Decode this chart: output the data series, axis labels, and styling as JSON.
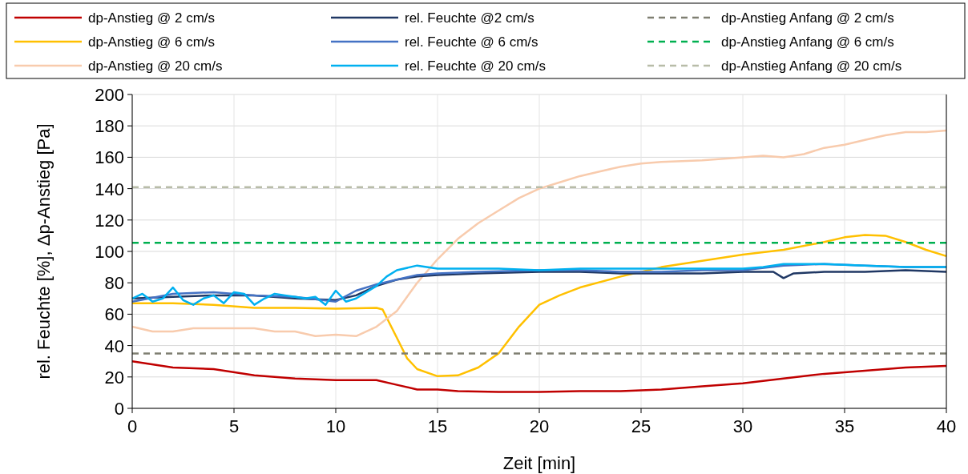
{
  "chart_data": {
    "type": "line",
    "xlabel": "Zeit [min]",
    "ylabel": "rel. Feuchte [%], Δp-Anstieg [Pa]",
    "xlim": [
      0,
      40
    ],
    "ylim": [
      0,
      200
    ],
    "xticks": [
      0,
      5,
      10,
      15,
      20,
      25,
      30,
      35,
      40
    ],
    "yticks": [
      0,
      20,
      40,
      60,
      80,
      100,
      120,
      140,
      160,
      180,
      200
    ],
    "grid": true,
    "legend": "top",
    "series": [
      {
        "name": "dp-Anstieg @ 2 cm/s",
        "color": "#c00000",
        "x": [
          0,
          2,
          4,
          6,
          8,
          10,
          12,
          13,
          14,
          15,
          16,
          18,
          20,
          22,
          24,
          26,
          28,
          30,
          32,
          34,
          36,
          38,
          40
        ],
        "values": [
          30,
          26,
          25,
          21,
          19,
          18,
          18,
          15,
          12,
          12,
          11,
          10.5,
          10.5,
          11,
          11,
          12,
          14,
          16,
          19,
          22,
          24,
          26,
          27
        ]
      },
      {
        "name": "dp-Anstieg @ 6 cm/s",
        "color": "#ffc000",
        "x": [
          0,
          2,
          4,
          6,
          8,
          10,
          12,
          12.3,
          13,
          13.5,
          14,
          15,
          16,
          17,
          18,
          19,
          20,
          21,
          22,
          24,
          26,
          28,
          30,
          32,
          34,
          35,
          36,
          37,
          38,
          39,
          40
        ],
        "values": [
          67,
          67,
          66,
          64,
          64,
          63.5,
          64,
          63,
          45,
          32,
          25,
          20.5,
          21,
          26,
          35,
          52,
          66,
          72,
          77,
          84,
          90,
          94,
          98,
          101,
          106,
          109,
          110.5,
          110,
          106,
          101,
          97
        ]
      },
      {
        "name": "dp-Anstieg @ 20 cm/s",
        "color": "#f8cbad",
        "x": [
          0,
          1,
          2,
          3,
          4,
          5,
          6,
          7,
          8,
          9,
          10,
          11,
          12,
          13,
          14,
          15,
          16,
          17,
          18,
          19,
          20,
          21,
          22,
          23,
          24,
          25,
          26,
          28,
          30,
          31,
          32,
          33,
          34,
          35,
          36,
          37,
          38,
          39,
          40
        ],
        "values": [
          52,
          49,
          49,
          51,
          51,
          51,
          51,
          49,
          49,
          46,
          47,
          46,
          52,
          62,
          80,
          95,
          108,
          118,
          126,
          134,
          140,
          144,
          148,
          151,
          154,
          156,
          157,
          158,
          160,
          161,
          160,
          162,
          166,
          168,
          171,
          174,
          176,
          176,
          177
        ]
      },
      {
        "name": "rel. Feuchte @2 cm/s",
        "color": "#203864",
        "x": [
          0,
          2,
          4,
          6,
          8,
          10,
          11,
          12,
          13,
          14,
          15,
          17,
          20,
          22,
          24,
          26,
          28,
          30,
          31.5,
          32,
          32.5,
          34,
          36,
          38,
          40
        ],
        "values": [
          70,
          71,
          72,
          72,
          70,
          69,
          72,
          78,
          82,
          84,
          85,
          86,
          87,
          87,
          86,
          86,
          86,
          87,
          87,
          83,
          86,
          87,
          87,
          88,
          87
        ]
      },
      {
        "name": "rel. Feuchte @ 6 cm/s",
        "color": "#4472c4",
        "x": [
          0,
          2,
          4,
          6,
          8,
          10,
          11,
          12,
          13,
          14,
          15,
          17,
          20,
          22,
          24,
          26,
          28,
          30,
          32,
          34,
          36,
          38,
          40
        ],
        "values": [
          68,
          73,
          74,
          72,
          71,
          68,
          75,
          79,
          82,
          85,
          86,
          87,
          88,
          88,
          87,
          87,
          88,
          88,
          91,
          92,
          91,
          90,
          90
        ]
      },
      {
        "name": "rel. Feuchte @ 20 cm/s",
        "color": "#00b0f0",
        "x": [
          0,
          0.5,
          1,
          1.5,
          2,
          2.5,
          3,
          3.5,
          4,
          4.5,
          5,
          5.5,
          6,
          6.5,
          7,
          7.5,
          8,
          8.5,
          9,
          9.5,
          10,
          10.5,
          11,
          12,
          12.5,
          13,
          14,
          15,
          16,
          18,
          20,
          22,
          24,
          26,
          28,
          30,
          31,
          32,
          34,
          36,
          38,
          40
        ],
        "values": [
          70,
          73,
          68,
          70,
          77,
          69,
          66,
          70,
          72,
          67,
          74,
          73,
          66,
          70,
          73,
          72,
          71,
          70,
          71,
          66,
          75,
          68,
          70,
          78,
          84,
          88,
          91,
          89,
          89,
          89,
          88,
          89,
          89,
          89,
          89,
          89,
          90,
          92,
          92,
          91,
          90,
          90
        ]
      },
      {
        "name": "dp-Anstieg Anfang @ 2 cm/s",
        "color": "#7f7f72",
        "line_style": "dashed",
        "x": [
          0,
          40
        ],
        "values": [
          35,
          35
        ]
      },
      {
        "name": "dp-Anstieg Anfang @ 6 cm/s",
        "color": "#00b050",
        "line_style": "dashed",
        "x": [
          0,
          40
        ],
        "values": [
          105.5,
          105.5
        ]
      },
      {
        "name": "dp-Anstieg Anfang @ 20 cm/s",
        "color": "#b8bca8",
        "line_style": "dashed",
        "x": [
          0,
          40
        ],
        "values": [
          141,
          141
        ]
      }
    ]
  }
}
